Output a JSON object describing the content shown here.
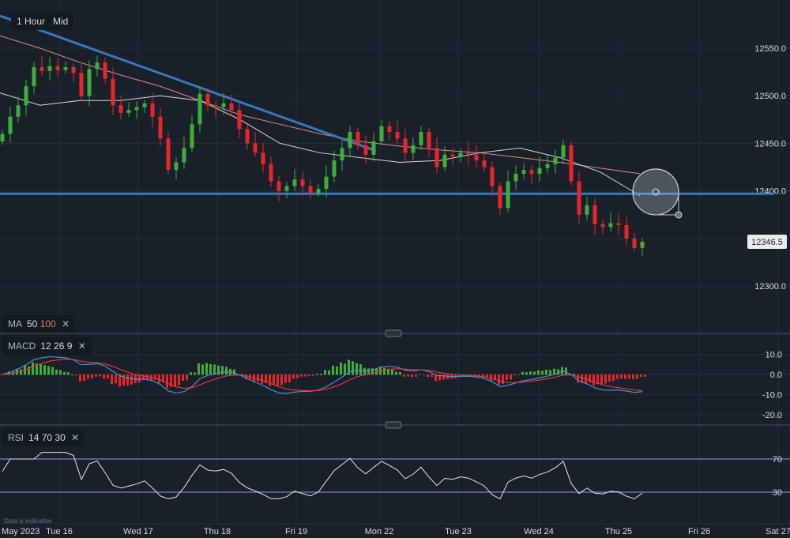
{
  "toolbar": {
    "interval": "1 Hour",
    "price_type": "Mid"
  },
  "indicators": {
    "ma": {
      "label": "MA",
      "p1": "50",
      "p2": "100",
      "remove": "✕"
    },
    "macd": {
      "label": "MACD",
      "fast": "12",
      "slow": "26",
      "signal": "9",
      "remove": "✕"
    },
    "rsi": {
      "label": "RSI",
      "period": "14",
      "upper": "70",
      "lower": "30",
      "remove": "✕"
    }
  },
  "disclaimer": "Data is indicative",
  "colors": {
    "up": "#3fae3a",
    "down": "#e8262a",
    "ma50": "#d8d8d8",
    "ma100": "#e08a8a",
    "macd": "#4a90d9",
    "signal": "#e0383c",
    "trendline": "#3a78b8",
    "background": "#19202a"
  },
  "chart_data": {
    "type": "candlestick",
    "interval": "2h approx",
    "price_axis": {
      "ticks": [
        "12550.0",
        "12500.0",
        "12450.0",
        "12400.0",
        "12300.0"
      ],
      "range": [
        12250,
        12590
      ]
    },
    "last_price": "12346.5",
    "x_ticks": [
      "May 2023",
      "Tue 16",
      "Wed 17",
      "Thu 18",
      "Fri 19",
      "Mon 22",
      "Tue 23",
      "Wed 24",
      "Thu 25",
      "Fri 26",
      "Sat 27"
    ],
    "closes": [
      12460,
      12478,
      12490,
      12510,
      12530,
      12526,
      12531,
      12527,
      12530,
      12524,
      12500,
      12528,
      12535,
      12518,
      12490,
      12482,
      12485,
      12488,
      12492,
      12478,
      12455,
      12422,
      12430,
      12445,
      12470,
      12502,
      12490,
      12488,
      12492,
      12485,
      12465,
      12450,
      12440,
      12428,
      12410,
      12400,
      12405,
      12412,
      12405,
      12398,
      12402,
      12415,
      12432,
      12445,
      12462,
      12448,
      12438,
      12452,
      12468,
      12462,
      12455,
      12440,
      12448,
      12462,
      12445,
      12425,
      12438,
      12436,
      12440,
      12438,
      12432,
      12425,
      12405,
      12382,
      12410,
      12418,
      12422,
      12418,
      12424,
      12428,
      12435,
      12448,
      12410,
      12375,
      12385,
      12365,
      12362,
      12366,
      12364,
      12350,
      12340,
      12346.5
    ],
    "ma50": [
      12503,
      12490,
      12495,
      12495,
      12500,
      12495,
      12475,
      12450,
      12440,
      12435,
      12430,
      12432,
      12440,
      12445,
      12435,
      12420,
      12395
    ],
    "ma100": [
      12563,
      12550,
      12535,
      12522,
      12510,
      12495,
      12480,
      12470,
      12460,
      12452,
      12447,
      12443,
      12440,
      12435,
      12430,
      12424,
      12418
    ],
    "trendlines": [
      {
        "kind": "descending",
        "from": [
          0,
          12584
        ],
        "to": [
          47,
          12443
        ]
      },
      {
        "kind": "horizontal",
        "level": 12397
      }
    ],
    "macd_axis": {
      "ticks": [
        "10.0",
        "0.0",
        "-10.0",
        "-20.0"
      ]
    },
    "rsi_axis": {
      "ticks": [
        "70",
        "30"
      ],
      "upper": 70,
      "lower": 30
    }
  }
}
